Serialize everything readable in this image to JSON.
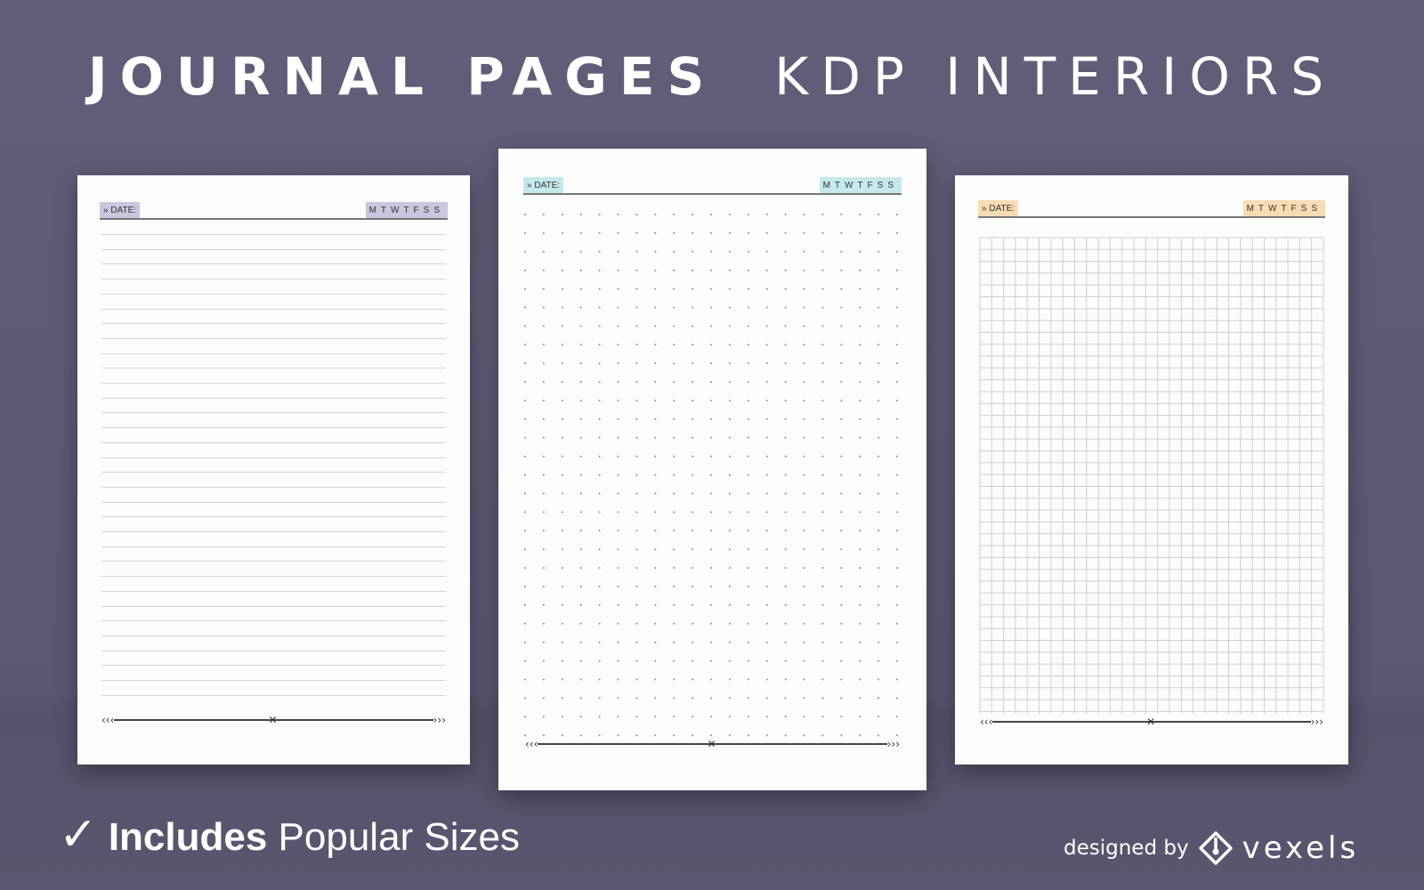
{
  "title": {
    "bold": "JOURNAL PAGES",
    "light": "KDP INTERIORS"
  },
  "pages": [
    {
      "style": "lined",
      "date_label": "DATE:",
      "days": "MTWTFSS",
      "accent": "#cac6dd"
    },
    {
      "style": "dotted",
      "date_label": "DATE:",
      "days": "MTWTFSS",
      "accent": "#c5e8ec"
    },
    {
      "style": "grid",
      "date_label": "DATE:",
      "days": "MTWTFSS",
      "accent": "#f8dcb4"
    }
  ],
  "tagline": {
    "icon": "checkmark-icon",
    "bold": "Includes",
    "light": "Popular Sizes"
  },
  "credit": {
    "prefix": "designed by",
    "brand": "vexels",
    "icon": "vexels-logo-icon"
  },
  "colors": {
    "background": "#5d5973",
    "page": "#fdfcfd"
  }
}
